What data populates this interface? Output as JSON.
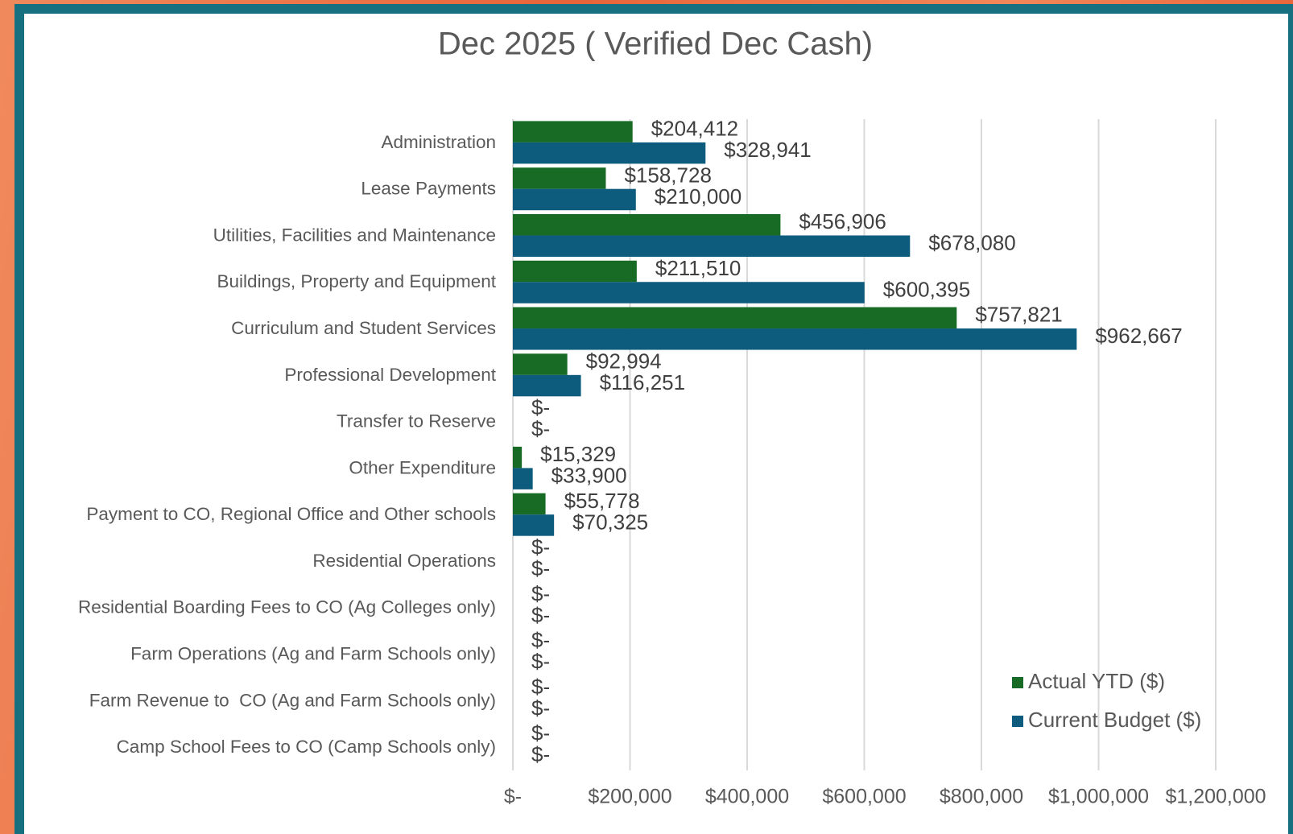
{
  "chart_data": {
    "type": "barh",
    "title": "Dec 2025 ( Verified Dec Cash)",
    "categories": [
      "Administration",
      "Lease Payments",
      "Utilities, Facilities and Maintenance",
      "Buildings, Property and Equipment",
      "Curriculum and Student Services",
      "Professional Development",
      "Transfer to Reserve",
      "Other Expenditure",
      "Payment to CO, Regional Office and Other schools",
      "Residential Operations",
      "Residential Boarding Fees to CO (Ag Colleges only)",
      "Farm Operations (Ag and Farm Schools only)",
      "Farm Revenue to  CO (Ag and Farm Schools only)",
      "Camp School Fees to CO (Camp Schools only)"
    ],
    "series": [
      {
        "name": "Actual YTD ($)",
        "color": "#186b24",
        "values": [
          204412,
          158728,
          456906,
          211510,
          757821,
          92994,
          0,
          15329,
          55778,
          0,
          0,
          0,
          0,
          0
        ],
        "value_labels": [
          "$204,412",
          "$158,728",
          "$456,906",
          "$211,510",
          "$757,821",
          "$92,994",
          "$-",
          "$15,329",
          "$55,778",
          "$-",
          "$-",
          "$-",
          "$-",
          "$-"
        ]
      },
      {
        "name": "Current Budget ($)",
        "color": "#0d5c7e",
        "values": [
          328941,
          210000,
          678080,
          600395,
          962667,
          116251,
          0,
          33900,
          70325,
          0,
          0,
          0,
          0,
          0
        ],
        "value_labels": [
          "$328,941",
          "$210,000",
          "$678,080",
          "$600,395",
          "$962,667",
          "$116,251",
          "$-",
          "$33,900",
          "$70,325",
          "$-",
          "$-",
          "$-",
          "$-",
          "$-"
        ]
      }
    ],
    "xlim": [
      0,
      1200000
    ],
    "xticks": [
      {
        "value": 0,
        "label": "$-"
      },
      {
        "value": 200000,
        "label": "$200,000"
      },
      {
        "value": 400000,
        "label": "$400,000"
      },
      {
        "value": 600000,
        "label": "$600,000"
      },
      {
        "value": 800000,
        "label": "$800,000"
      },
      {
        "value": 1000000,
        "label": "$1,000,000"
      },
      {
        "value": 1200000,
        "label": "$1,200,000"
      }
    ],
    "grid": true,
    "legend": "lower right"
  }
}
